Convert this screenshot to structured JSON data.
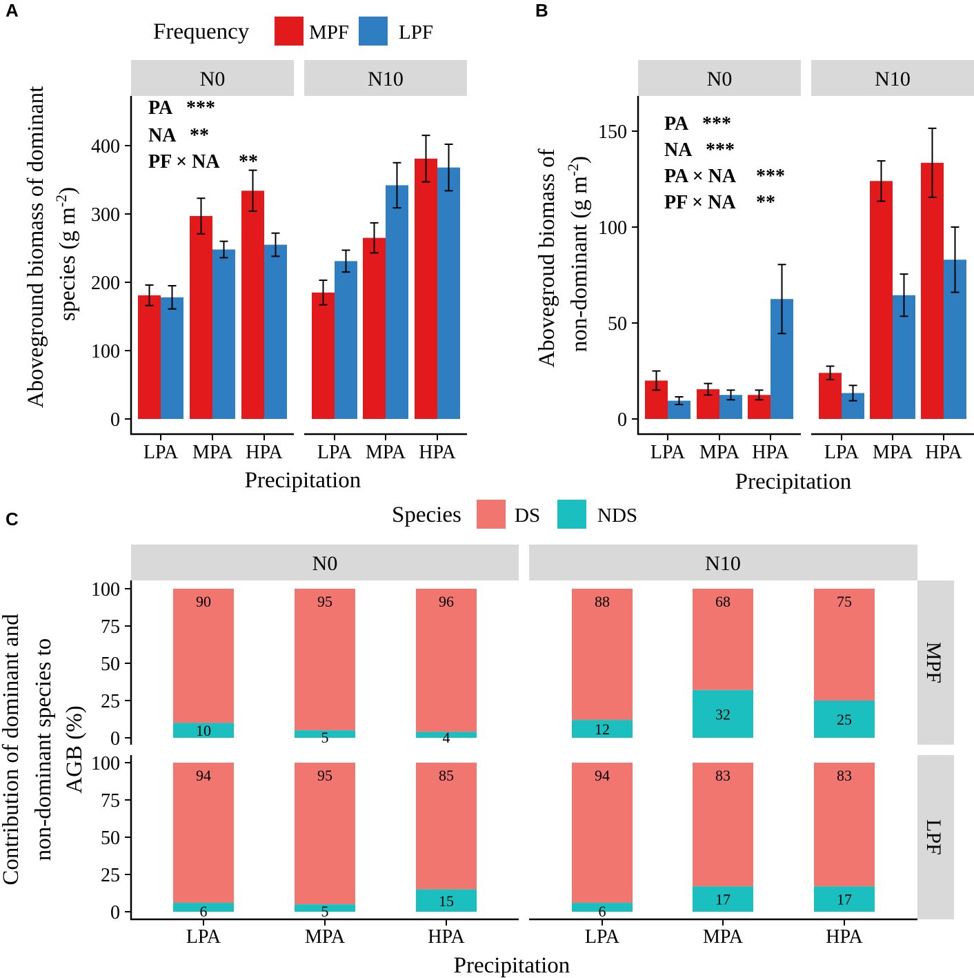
{
  "colors": {
    "MPF": "#e31a1c",
    "LPF": "#2f7ec1",
    "DS": "#f27670",
    "NDS": "#1cbfbf",
    "strip": "#d9d9d9"
  },
  "chart_data": [
    {
      "id": "A",
      "type": "bar",
      "panel_label": "A",
      "legend_title": "Frequency",
      "legend": [
        "MPF",
        "LPF"
      ],
      "facets": [
        "N0",
        "N10"
      ],
      "categories": [
        "LPA",
        "MPA",
        "HPA"
      ],
      "ylabel_line1": "Aboveground biomass of dominant",
      "ylabel_line2": "species (g  m",
      "ylabel_sup": "-2",
      "ylabel_close": ")",
      "xlabel": "Precipitation",
      "ylim": [
        0,
        470
      ],
      "yticks": [
        0,
        100,
        200,
        300,
        400
      ],
      "series": [
        {
          "name": "MPF",
          "facet": "N0",
          "values": [
            181,
            297,
            334
          ],
          "errors": [
            15,
            26,
            30
          ]
        },
        {
          "name": "LPF",
          "facet": "N0",
          "values": [
            178,
            248,
            255
          ],
          "errors": [
            17,
            12,
            17
          ]
        },
        {
          "name": "MPF",
          "facet": "N10",
          "values": [
            185,
            265,
            381
          ],
          "errors": [
            18,
            22,
            34
          ]
        },
        {
          "name": "LPF",
          "facet": "N10",
          "values": [
            231,
            342,
            368
          ],
          "errors": [
            16,
            33,
            34
          ]
        }
      ],
      "annotations": [
        {
          "term": "PA",
          "sig": "***"
        },
        {
          "term": "NA",
          "sig": "**"
        },
        {
          "term": "PF × NA",
          "sig": "**"
        }
      ]
    },
    {
      "id": "B",
      "type": "bar",
      "panel_label": "B",
      "facets": [
        "N0",
        "N10"
      ],
      "categories": [
        "LPA",
        "MPA",
        "HPA"
      ],
      "ylabel_line1": "Abovegroud biomass of",
      "ylabel_line2": "non-dominant  (g  m",
      "ylabel_sup": "-2",
      "ylabel_close": ")",
      "xlabel": "Precipitation",
      "ylim": [
        0,
        168
      ],
      "yticks": [
        0,
        50,
        100,
        150
      ],
      "series": [
        {
          "name": "MPF",
          "facet": "N0",
          "values": [
            20,
            15.5,
            12.5
          ],
          "errors": [
            5,
            3,
            2.5
          ]
        },
        {
          "name": "LPF",
          "facet": "N0",
          "values": [
            9.5,
            12.5,
            62.5
          ],
          "errors": [
            2,
            2.5,
            18
          ]
        },
        {
          "name": "MPF",
          "facet": "N10",
          "values": [
            24,
            124,
            133.5
          ],
          "errors": [
            3.5,
            10.5,
            18
          ]
        },
        {
          "name": "LPF",
          "facet": "N10",
          "values": [
            13.5,
            64.5,
            83
          ],
          "errors": [
            4,
            11,
            17
          ]
        }
      ],
      "annotations": [
        {
          "term": "PA",
          "sig": "***"
        },
        {
          "term": "NA",
          "sig": "***"
        },
        {
          "term": "PA × NA",
          "sig": "***"
        },
        {
          "term": "PF × NA",
          "sig": "**"
        }
      ]
    },
    {
      "id": "C",
      "type": "bar",
      "stacked": true,
      "panel_label": "C",
      "legend_title": "Species",
      "legend": [
        "DS",
        "NDS"
      ],
      "facets_col": [
        "N0",
        "N10"
      ],
      "facets_row": [
        "MPF",
        "LPF"
      ],
      "categories": [
        "LPA",
        "MPA",
        "HPA"
      ],
      "ylabel_line1": "Contribution of dominant and",
      "ylabel_line2": "non-dominant species to",
      "ylabel_line3": "AGB (%)",
      "xlabel": "Precipitation",
      "ylim": [
        0,
        100
      ],
      "yticks": [
        0,
        25,
        50,
        75,
        100
      ],
      "cells": [
        {
          "row": "MPF",
          "col": "N0",
          "DS": [
            90,
            95,
            96
          ],
          "NDS": [
            10,
            5,
            4
          ]
        },
        {
          "row": "MPF",
          "col": "N10",
          "DS": [
            88,
            68,
            75
          ],
          "NDS": [
            12,
            32,
            25
          ]
        },
        {
          "row": "LPF",
          "col": "N0",
          "DS": [
            94,
            95,
            85
          ],
          "NDS": [
            6,
            5,
            15
          ]
        },
        {
          "row": "LPF",
          "col": "N10",
          "DS": [
            94,
            83,
            83
          ],
          "NDS": [
            6,
            17,
            17
          ]
        }
      ]
    }
  ]
}
